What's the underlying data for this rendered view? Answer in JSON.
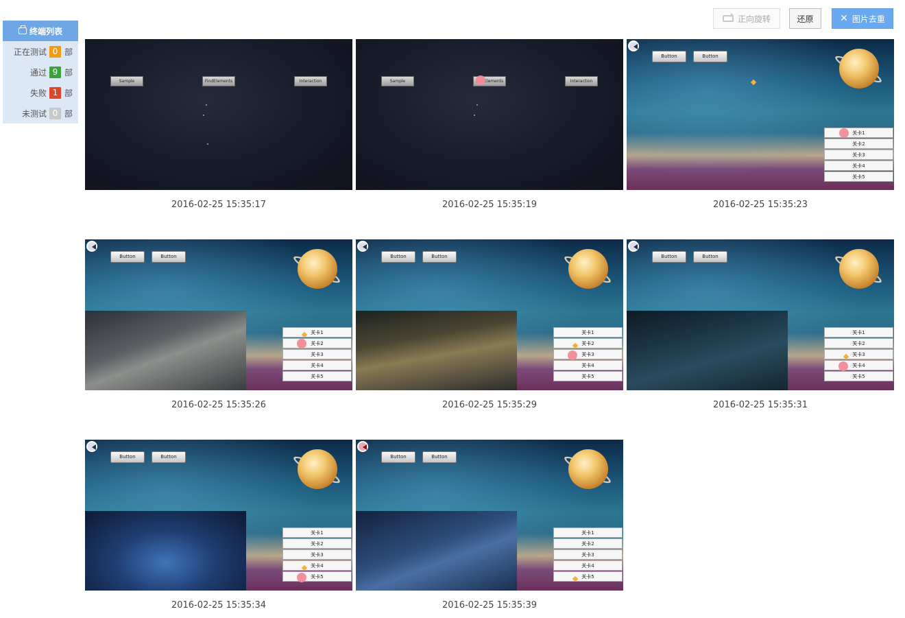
{
  "sidebar": {
    "title": "终端列表",
    "unit": "部",
    "stats": [
      {
        "label": "正在测试",
        "count": "0",
        "color": "#f39c12"
      },
      {
        "label": "通过",
        "count": "9",
        "color": "#3aa43a"
      },
      {
        "label": "失败",
        "count": "1",
        "color": "#e0452b"
      },
      {
        "label": "未测试",
        "count": "0",
        "color": "#c8c8c8"
      }
    ]
  },
  "toolbar": {
    "rotate_label": "正向旋转",
    "restore_label": "还原",
    "dedup_label": "图片去重"
  },
  "screenshots": [
    {
      "timestamp": "2016-02-25 15:35:17",
      "scene": "menu",
      "buttons": [
        "Sample",
        "FindElements",
        "Interaction"
      ]
    },
    {
      "timestamp": "2016-02-25 15:35:19",
      "scene": "menu",
      "buttons": [
        "Sample",
        "FindElements",
        "Interaction"
      ]
    },
    {
      "timestamp": "2016-02-25 15:35:23",
      "scene": "space"
    },
    {
      "timestamp": "2016-02-25 15:35:26",
      "scene": "space"
    },
    {
      "timestamp": "2016-02-25 15:35:29",
      "scene": "space"
    },
    {
      "timestamp": "2016-02-25 15:35:31",
      "scene": "space"
    },
    {
      "timestamp": "2016-02-25 15:35:34",
      "scene": "space"
    },
    {
      "timestamp": "2016-02-25 15:35:39",
      "scene": "space"
    }
  ],
  "game_ui": {
    "button_label": "Button",
    "levels": [
      "关卡1",
      "关卡2",
      "关卡3",
      "关卡4",
      "关卡5"
    ]
  }
}
